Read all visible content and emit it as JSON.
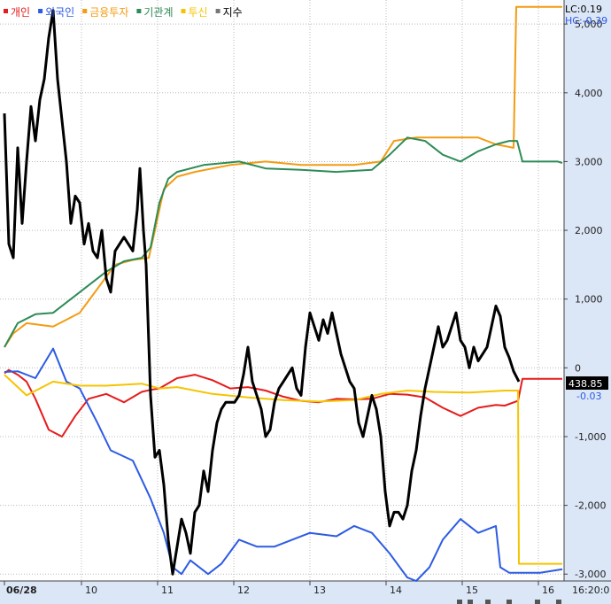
{
  "chart_data": {
    "type": "line",
    "title": "",
    "xlabel": "",
    "ylabel": "",
    "legend_position": "top-left",
    "grid": true,
    "ylim": [
      -3100,
      5350
    ],
    "yticks": [
      5000,
      4000,
      3000,
      2000,
      1000,
      0,
      -1000,
      -2000,
      -3000
    ],
    "ytick_labels": [
      "5,000",
      "4,000",
      "3,000",
      "2,000",
      "1,000",
      "0",
      "-1,000",
      "-2,000",
      "-3,000"
    ],
    "x_range": [
      0,
      690
    ],
    "x_ticks": [
      {
        "label": "06/28",
        "pos": 5
      },
      {
        "label": "10",
        "pos": 92
      },
      {
        "label": "11",
        "pos": 178
      },
      {
        "label": "12",
        "pos": 264
      },
      {
        "label": "13",
        "pos": 350
      },
      {
        "label": "14",
        "pos": 436
      },
      {
        "label": "15",
        "pos": 522
      },
      {
        "label": "16",
        "pos": 608
      }
    ],
    "time_label": "16:20:0",
    "top_right": [
      {
        "text": "LC:0.19",
        "color": "#000000"
      },
      {
        "text": "HC:-0.39",
        "color": "#2d5be3"
      }
    ],
    "last_value_label": "438.85",
    "right_value_label": "-0.03",
    "series": [
      {
        "name": "개인",
        "color": "#e51c1c",
        "points": [
          [
            5,
            -80
          ],
          [
            10,
            -30
          ],
          [
            20,
            -100
          ],
          [
            30,
            -200
          ],
          [
            40,
            -450
          ],
          [
            55,
            -900
          ],
          [
            70,
            -1000
          ],
          [
            85,
            -700
          ],
          [
            100,
            -450
          ],
          [
            120,
            -380
          ],
          [
            140,
            -500
          ],
          [
            160,
            -350
          ],
          [
            170,
            -320
          ],
          [
            180,
            -300
          ],
          [
            200,
            -150
          ],
          [
            220,
            -100
          ],
          [
            240,
            -180
          ],
          [
            260,
            -300
          ],
          [
            280,
            -280
          ],
          [
            300,
            -330
          ],
          [
            320,
            -420
          ],
          [
            340,
            -480
          ],
          [
            360,
            -500
          ],
          [
            380,
            -450
          ],
          [
            400,
            -460
          ],
          [
            420,
            -450
          ],
          [
            440,
            -380
          ],
          [
            460,
            -390
          ],
          [
            480,
            -430
          ],
          [
            500,
            -580
          ],
          [
            520,
            -700
          ],
          [
            540,
            -580
          ],
          [
            560,
            -540
          ],
          [
            570,
            -550
          ],
          [
            585,
            -480
          ],
          [
            590,
            -160
          ],
          [
            635,
            -160
          ]
        ]
      },
      {
        "name": "외국인",
        "color": "#2d5be3",
        "points": [
          [
            5,
            -60
          ],
          [
            20,
            -50
          ],
          [
            40,
            -150
          ],
          [
            60,
            280
          ],
          [
            75,
            -200
          ],
          [
            90,
            -300
          ],
          [
            110,
            -800
          ],
          [
            125,
            -1200
          ],
          [
            150,
            -1350
          ],
          [
            170,
            -1900
          ],
          [
            185,
            -2400
          ],
          [
            195,
            -2900
          ],
          [
            205,
            -3000
          ],
          [
            215,
            -2800
          ],
          [
            235,
            -3000
          ],
          [
            250,
            -2850
          ],
          [
            270,
            -2500
          ],
          [
            290,
            -2600
          ],
          [
            310,
            -2600
          ],
          [
            330,
            -2500
          ],
          [
            350,
            -2400
          ],
          [
            380,
            -2450
          ],
          [
            400,
            -2300
          ],
          [
            420,
            -2400
          ],
          [
            440,
            -2700
          ],
          [
            460,
            -3050
          ],
          [
            470,
            -3100
          ],
          [
            485,
            -2900
          ],
          [
            500,
            -2500
          ],
          [
            520,
            -2200
          ],
          [
            540,
            -2400
          ],
          [
            560,
            -2300
          ],
          [
            565,
            -2900
          ],
          [
            575,
            -2980
          ],
          [
            610,
            -2980
          ],
          [
            635,
            -2930
          ]
        ]
      },
      {
        "name": "금융투자",
        "color": "#f39c12",
        "points": [
          [
            5,
            300
          ],
          [
            15,
            500
          ],
          [
            30,
            650
          ],
          [
            60,
            600
          ],
          [
            90,
            800
          ],
          [
            110,
            1150
          ],
          [
            130,
            1500
          ],
          [
            150,
            1570
          ],
          [
            168,
            1600
          ],
          [
            175,
            2000
          ],
          [
            185,
            2600
          ],
          [
            200,
            2780
          ],
          [
            220,
            2850
          ],
          [
            260,
            2950
          ],
          [
            300,
            3000
          ],
          [
            340,
            2950
          ],
          [
            380,
            2950
          ],
          [
            400,
            2950
          ],
          [
            430,
            3000
          ],
          [
            445,
            3300
          ],
          [
            470,
            3350
          ],
          [
            500,
            3350
          ],
          [
            540,
            3350
          ],
          [
            560,
            3250
          ],
          [
            580,
            3200
          ],
          [
            583,
            5250
          ],
          [
            635,
            5250
          ]
        ]
      },
      {
        "name": "기관계",
        "color": "#2e8b57",
        "points": [
          [
            5,
            300
          ],
          [
            20,
            650
          ],
          [
            40,
            780
          ],
          [
            60,
            800
          ],
          [
            80,
            1000
          ],
          [
            100,
            1200
          ],
          [
            120,
            1400
          ],
          [
            140,
            1550
          ],
          [
            160,
            1600
          ],
          [
            170,
            1750
          ],
          [
            180,
            2400
          ],
          [
            190,
            2750
          ],
          [
            200,
            2850
          ],
          [
            230,
            2950
          ],
          [
            270,
            3000
          ],
          [
            300,
            2900
          ],
          [
            340,
            2880
          ],
          [
            380,
            2850
          ],
          [
            420,
            2880
          ],
          [
            440,
            3100
          ],
          [
            460,
            3350
          ],
          [
            480,
            3300
          ],
          [
            500,
            3100
          ],
          [
            520,
            3000
          ],
          [
            540,
            3150
          ],
          [
            560,
            3250
          ],
          [
            575,
            3300
          ],
          [
            584,
            3300
          ],
          [
            590,
            3000
          ],
          [
            630,
            3000
          ],
          [
            635,
            2980
          ]
        ]
      },
      {
        "name": "투신",
        "color": "#f5c400",
        "points": [
          [
            5,
            -100
          ],
          [
            30,
            -400
          ],
          [
            60,
            -200
          ],
          [
            90,
            -260
          ],
          [
            120,
            -260
          ],
          [
            160,
            -230
          ],
          [
            180,
            -300
          ],
          [
            200,
            -280
          ],
          [
            240,
            -380
          ],
          [
            280,
            -430
          ],
          [
            320,
            -470
          ],
          [
            360,
            -490
          ],
          [
            400,
            -470
          ],
          [
            430,
            -380
          ],
          [
            460,
            -330
          ],
          [
            490,
            -350
          ],
          [
            530,
            -360
          ],
          [
            570,
            -330
          ],
          [
            585,
            -330
          ],
          [
            586,
            -2850
          ],
          [
            635,
            -2850
          ]
        ]
      },
      {
        "name": "지수",
        "color": "#000000",
        "bold": true,
        "points": [
          [
            5,
            3700
          ],
          [
            10,
            1800
          ],
          [
            15,
            1600
          ],
          [
            20,
            3200
          ],
          [
            25,
            2100
          ],
          [
            30,
            3000
          ],
          [
            35,
            3800
          ],
          [
            40,
            3300
          ],
          [
            45,
            3900
          ],
          [
            50,
            4200
          ],
          [
            55,
            4800
          ],
          [
            60,
            5200
          ],
          [
            65,
            4200
          ],
          [
            70,
            3600
          ],
          [
            75,
            3000
          ],
          [
            80,
            2100
          ],
          [
            85,
            2500
          ],
          [
            90,
            2400
          ],
          [
            95,
            1800
          ],
          [
            100,
            2100
          ],
          [
            105,
            1700
          ],
          [
            110,
            1600
          ],
          [
            115,
            2000
          ],
          [
            120,
            1300
          ],
          [
            125,
            1100
          ],
          [
            130,
            1700
          ],
          [
            140,
            1900
          ],
          [
            150,
            1700
          ],
          [
            155,
            2300
          ],
          [
            158,
            2900
          ],
          [
            162,
            2000
          ],
          [
            165,
            1500
          ],
          [
            170,
            -400
          ],
          [
            175,
            -1300
          ],
          [
            180,
            -1200
          ],
          [
            185,
            -1700
          ],
          [
            190,
            -2500
          ],
          [
            195,
            -3000
          ],
          [
            200,
            -2600
          ],
          [
            205,
            -2200
          ],
          [
            210,
            -2400
          ],
          [
            215,
            -2700
          ],
          [
            220,
            -2100
          ],
          [
            225,
            -2000
          ],
          [
            230,
            -1500
          ],
          [
            235,
            -1800
          ],
          [
            240,
            -1200
          ],
          [
            245,
            -800
          ],
          [
            250,
            -600
          ],
          [
            255,
            -500
          ],
          [
            260,
            -500
          ],
          [
            265,
            -500
          ],
          [
            270,
            -400
          ],
          [
            275,
            -100
          ],
          [
            280,
            300
          ],
          [
            285,
            -200
          ],
          [
            290,
            -400
          ],
          [
            295,
            -600
          ],
          [
            300,
            -1000
          ],
          [
            305,
            -900
          ],
          [
            310,
            -500
          ],
          [
            315,
            -300
          ],
          [
            320,
            -200
          ],
          [
            325,
            -100
          ],
          [
            330,
            0
          ],
          [
            335,
            -300
          ],
          [
            340,
            -400
          ],
          [
            345,
            300
          ],
          [
            350,
            800
          ],
          [
            355,
            600
          ],
          [
            360,
            400
          ],
          [
            365,
            700
          ],
          [
            370,
            500
          ],
          [
            375,
            800
          ],
          [
            380,
            500
          ],
          [
            385,
            200
          ],
          [
            390,
            0
          ],
          [
            395,
            -200
          ],
          [
            400,
            -300
          ],
          [
            405,
            -800
          ],
          [
            410,
            -1000
          ],
          [
            415,
            -700
          ],
          [
            420,
            -400
          ],
          [
            425,
            -600
          ],
          [
            430,
            -1000
          ],
          [
            435,
            -1800
          ],
          [
            440,
            -2300
          ],
          [
            445,
            -2100
          ],
          [
            450,
            -2100
          ],
          [
            455,
            -2200
          ],
          [
            460,
            -2000
          ],
          [
            465,
            -1500
          ],
          [
            470,
            -1200
          ],
          [
            475,
            -700
          ],
          [
            480,
            -300
          ],
          [
            485,
            0
          ],
          [
            490,
            300
          ],
          [
            495,
            600
          ],
          [
            500,
            300
          ],
          [
            505,
            400
          ],
          [
            510,
            600
          ],
          [
            515,
            800
          ],
          [
            520,
            400
          ],
          [
            525,
            300
          ],
          [
            530,
            0
          ],
          [
            535,
            300
          ],
          [
            540,
            100
          ],
          [
            545,
            200
          ],
          [
            550,
            300
          ],
          [
            555,
            600
          ],
          [
            560,
            900
          ],
          [
            565,
            750
          ],
          [
            570,
            300
          ],
          [
            575,
            150
          ],
          [
            580,
            -50
          ],
          [
            586,
            -200
          ]
        ]
      }
    ]
  }
}
